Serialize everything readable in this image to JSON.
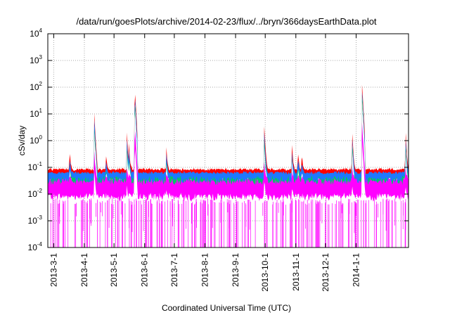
{
  "chart_data": {
    "type": "line",
    "title": "/data/run/goesPlots/archive/2014-02-23/flux/../bryn/366daysEarthData.plot",
    "xlabel": "Coordinated Universal Time (UTC)",
    "ylabel": "cSv/day",
    "yscale": "log",
    "ylim": [
      0.0001,
      10000
    ],
    "xlim": [
      "2013-02-23",
      "2014-02-23"
    ],
    "grid": true,
    "legend": "none",
    "x_ticks": [
      "2013-3-1",
      "2013-4-1",
      "2013-5-1",
      "2013-6-1",
      "2013-7-1",
      "2013-8-1",
      "2013-9-1",
      "2013-10-1",
      "2013-11-1",
      "2013-12-1",
      "2014-1-1"
    ],
    "y_ticks": [
      {
        "value": 0.0001,
        "base": "10",
        "exp": "-4"
      },
      {
        "value": 0.001,
        "base": "10",
        "exp": "-3"
      },
      {
        "value": 0.01,
        "base": "10",
        "exp": "-2"
      },
      {
        "value": 0.1,
        "base": "10",
        "exp": "-1"
      },
      {
        "value": 1,
        "base": "10",
        "exp": "0"
      },
      {
        "value": 10,
        "base": "10",
        "exp": "1"
      },
      {
        "value": 100,
        "base": "10",
        "exp": "2"
      },
      {
        "value": 1000,
        "base": "10",
        "exp": "3"
      },
      {
        "value": 10000,
        "base": "10",
        "exp": "4"
      }
    ],
    "baseline": {
      "red": 0.075,
      "blue": 0.055,
      "green": 0.03,
      "magenta": 0.015
    },
    "events": [
      {
        "date": "2013-03-17",
        "peak": 0.45
      },
      {
        "date": "2013-04-11",
        "peak": 10
      },
      {
        "date": "2013-04-23",
        "peak": 0.25
      },
      {
        "date": "2013-05-14",
        "peak": 1.7
      },
      {
        "date": "2013-05-16",
        "peak": 0.8
      },
      {
        "date": "2013-05-22",
        "peak": 100
      },
      {
        "date": "2013-06-23",
        "peak": 0.5
      },
      {
        "date": "2013-09-30",
        "peak": 3
      },
      {
        "date": "2013-10-28",
        "peak": 0.7
      },
      {
        "date": "2013-11-03",
        "peak": 0.5
      },
      {
        "date": "2013-11-07",
        "peak": 0.3
      },
      {
        "date": "2013-12-28",
        "peak": 1.9
      },
      {
        "date": "2014-01-07",
        "peak": 130
      },
      {
        "date": "2014-02-20",
        "peak": 2.3
      }
    ],
    "colors": {
      "red": "#ff0000",
      "blue": "#1e78ff",
      "green": "#00c864",
      "magenta": "#ff00ff",
      "grid": "#aaaaaa"
    }
  }
}
